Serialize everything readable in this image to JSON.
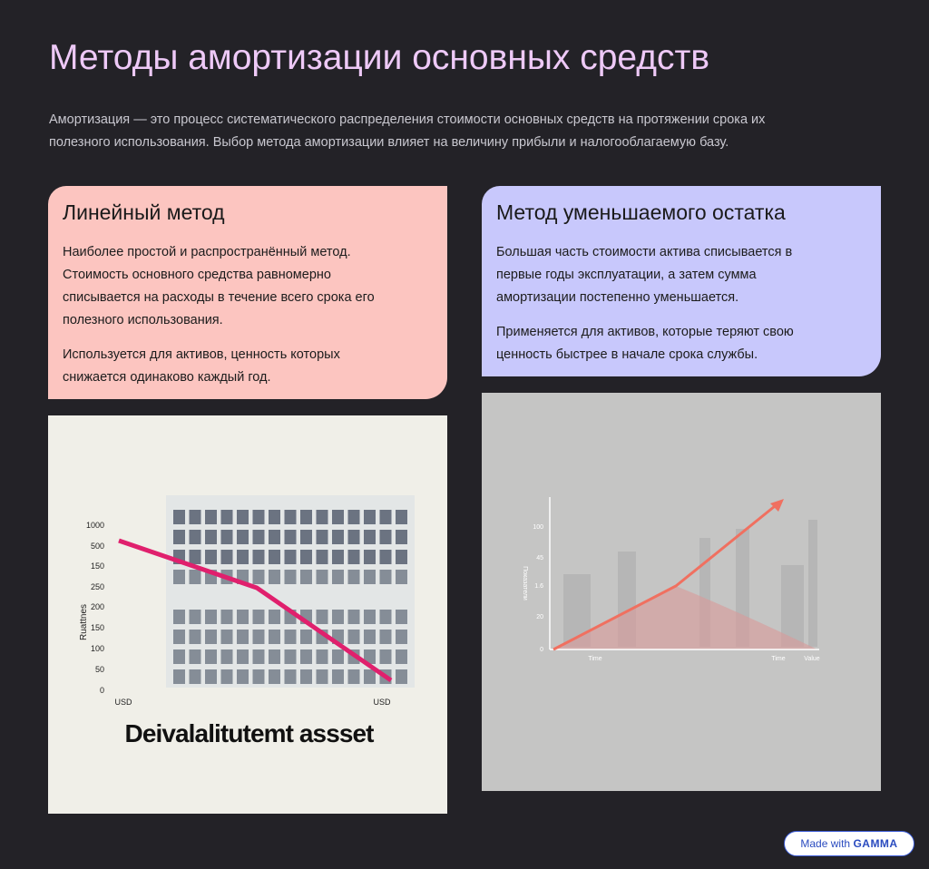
{
  "header": {
    "title": "Методы амортизации основных средств",
    "intro": [
      "Амортизация — это процесс систематического распределения стоимости основных средств на протяжении срока их",
      "полезного использования. Выбор метода амортизации влияет на величину прибыли и налогооблагаемую базу."
    ]
  },
  "cards": [
    {
      "title": "Линейный метод",
      "paragraphs": [
        [
          "Наиболее простой и распространённый метод.",
          "Стоимость основного средства равномерно",
          "списывается на расходы в течение всего срока его",
          "полезного использования."
        ],
        [
          "Используется для активов, ценность которых",
          "снижается одинаково каждый год."
        ]
      ]
    },
    {
      "title": "Метод уменьшаемого остатка",
      "paragraphs": [
        [
          "Большая часть стоимости актива списывается в",
          "первые годы эксплуатации, а затем сумма",
          "амортизации постепенно уменьшается."
        ],
        [
          "Применяется для активов, которые теряют свою",
          "ценность быстрее в начале срока службы."
        ]
      ]
    }
  ],
  "images": [
    {
      "y_labels": [
        "1000",
        "500",
        "150",
        "250",
        "200",
        "150",
        "100",
        "50",
        "0"
      ],
      "axis_label": "Ruattnes",
      "x_labels": [
        "USD",
        "USD"
      ],
      "caption": "Deivalalitutemt assset"
    },
    {
      "y_labels": [
        "100",
        "45",
        "1.6",
        "20",
        "0"
      ],
      "axis_label": "Показатели",
      "x_labels": [
        "Time",
        "Time",
        "Value"
      ]
    }
  ],
  "badge": {
    "prefix": "Made with",
    "brand": "GAMMA"
  }
}
